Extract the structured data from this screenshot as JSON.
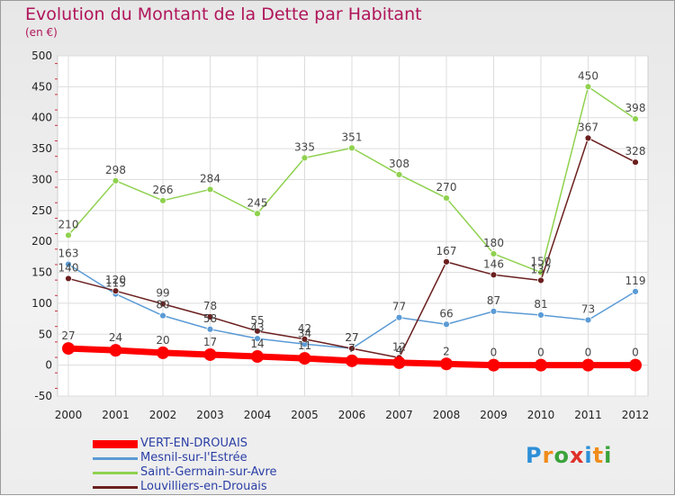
{
  "header": {
    "title": "Evolution du Montant de la Dette par Habitant",
    "subtitle": "(en €)"
  },
  "brand": {
    "letters": [
      "P",
      "r",
      "o",
      "x",
      "i",
      "t",
      "i"
    ],
    "colors": [
      "#2d8fd8",
      "#f08c1a",
      "#3aa33a",
      "#e0302a",
      "#2d8fd8",
      "#f08c1a",
      "#3aa33a"
    ]
  },
  "chart_data": {
    "type": "line",
    "title": "Evolution du Montant de la Dette par Habitant",
    "subtitle": "(en €)",
    "xlabel": "",
    "ylabel": "",
    "ylim": [
      -50,
      500
    ],
    "yticks": [
      -50,
      0,
      50,
      100,
      150,
      200,
      250,
      300,
      350,
      400,
      450,
      500
    ],
    "grid": true,
    "legend_position": "bottom-left",
    "x": [
      "2000",
      "2001",
      "2002",
      "2003",
      "2004",
      "2005",
      "2006",
      "2007",
      "2008",
      "2009",
      "2010",
      "2011",
      "2012"
    ],
    "series": [
      {
        "name": "VERT-EN-DROUAIS",
        "color": "#ff0000",
        "values": [
          27,
          24,
          20,
          17,
          14,
          11,
          7,
          4,
          2,
          0,
          0,
          0,
          0
        ]
      },
      {
        "name": "Mesnil-sur-l'Estrée",
        "color": "#5b9bd5",
        "values": [
          163,
          115,
          80,
          58,
          43,
          34,
          27,
          77,
          66,
          87,
          81,
          73,
          119
        ]
      },
      {
        "name": "Saint-Germain-sur-Avre",
        "color": "#8fd14f",
        "values": [
          210,
          298,
          266,
          284,
          245,
          335,
          351,
          308,
          270,
          180,
          150,
          450,
          398
        ]
      },
      {
        "name": "Louvilliers-en-Drouais",
        "color": "#6b1f1f",
        "values": [
          140,
          120,
          99,
          78,
          55,
          42,
          27,
          12,
          167,
          146,
          137,
          367,
          328
        ]
      }
    ]
  }
}
